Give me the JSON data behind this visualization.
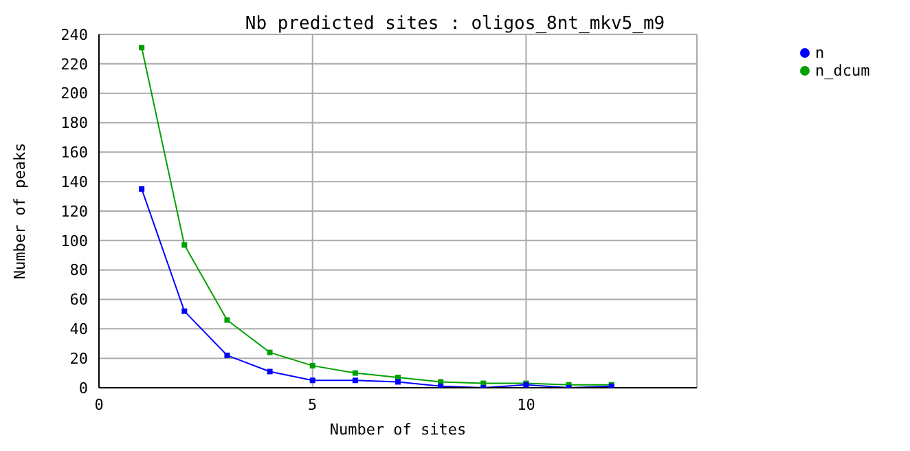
{
  "chart_data": {
    "type": "line",
    "title": "Nb predicted sites : oligos_8nt_mkv5_m9",
    "xlabel": "Number of sites",
    "ylabel": "Number of peaks",
    "x": [
      1,
      2,
      3,
      4,
      5,
      6,
      7,
      8,
      9,
      10,
      11,
      12
    ],
    "series": [
      {
        "name": "n",
        "color": "#0000ff",
        "values": [
          135,
          52,
          22,
          11,
          5,
          5,
          4,
          1,
          0,
          2,
          0,
          1
        ]
      },
      {
        "name": "n_dcum",
        "color": "#00a000",
        "values": [
          231,
          97,
          46,
          24,
          15,
          10,
          7,
          4,
          3,
          3,
          2,
          2
        ]
      }
    ],
    "xlim": [
      0,
      14
    ],
    "xticks": [
      0,
      5,
      10
    ],
    "ylim": [
      0,
      240
    ],
    "yticks": [
      0,
      20,
      40,
      60,
      80,
      100,
      120,
      140,
      160,
      180,
      200,
      220,
      240
    ],
    "grid": true,
    "legend": "top right",
    "marker": "square",
    "line_style": "solid"
  }
}
